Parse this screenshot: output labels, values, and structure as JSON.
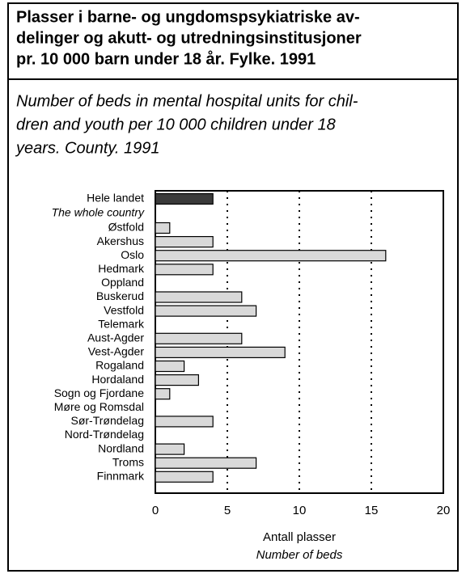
{
  "chart_data": {
    "type": "bar",
    "orientation": "horizontal",
    "title_lines": [
      "Plasser i barne- og ungdomspsykiatriske av-",
      "delinger og akutt- og utredningsinstitusjoner",
      "pr. 10 000 barn under 18 år. Fylke. 1991"
    ],
    "subtitle_lines": [
      "Number of beds in mental hospital units for chil-",
      "dren and youth per 10 000 children under 18",
      "years. County. 1991"
    ],
    "categories": [
      "Hele landet",
      "Østfold",
      "Akershus",
      "Oslo",
      "Hedmark",
      "Oppland",
      "Buskerud",
      "Vestfold",
      "Telemark",
      "Aust-Agder",
      "Vest-Agder",
      "Rogaland",
      "Hordaland",
      "Sogn og Fjordane",
      "Møre og Romsdal",
      "Sør-Trøndelag",
      "Nord-Trøndelag",
      "Nordland",
      "Troms",
      "Finnmark"
    ],
    "first_category_en": "The whole country",
    "values": [
      4,
      1,
      4,
      16,
      4,
      0,
      6,
      7,
      0,
      6,
      9,
      2,
      3,
      1,
      0,
      4,
      0,
      2,
      7,
      4
    ],
    "color": "#d9d9d9",
    "highlight_color": "#3a3a3a",
    "xlim": [
      0,
      20
    ],
    "xticks": [
      0,
      5,
      10,
      15,
      20
    ],
    "grid": true,
    "xlabel": "Antall plasser",
    "xlabel_en": "Number of beds"
  }
}
